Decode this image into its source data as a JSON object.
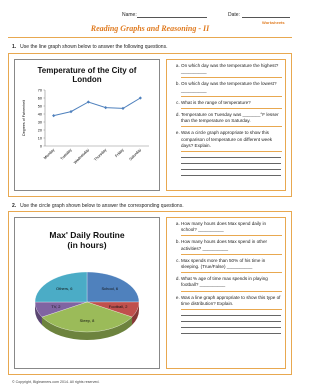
{
  "header": {
    "name_label": "Name:",
    "date_label": "Date:",
    "title": "Reading Graphs and Reasoning - II",
    "logo": "Worksheets"
  },
  "sections": [
    {
      "number": "1.",
      "instruction": "Use the line graph shown below to answer the following questions.",
      "chart": {
        "type": "line",
        "title": "Temperature of the City of London",
        "y_label": "Degrees of Fahrenheit",
        "categories": [
          "Monday",
          "Tuesday",
          "Wednesday",
          "Thursday",
          "Friday",
          "Saturday"
        ],
        "values": [
          38,
          43,
          55,
          48,
          47,
          60
        ],
        "color": "#4f81bd",
        "ylim": [
          0,
          70
        ],
        "yticks": [
          0,
          10,
          20,
          30,
          40,
          50,
          60,
          70
        ]
      },
      "questions": [
        "On which day was the temperature the highest? __________",
        "On which day was the temperature the lowest? __________",
        "What is the range of temperature?",
        "Temperature on Tuesday was _______°F lesser than the temperature on Saturday.",
        "Was a circle graph appropriate to show this comparison of temperature on different week days? Explain."
      ]
    },
    {
      "number": "2.",
      "instruction": "Use the circle graph shown below to answer the corresponding questions.",
      "chart": {
        "type": "pie",
        "title": "Max' Daily Routine (in hours)",
        "categories": [
          "School",
          "Football",
          "Sleep",
          "TV",
          "Others"
        ],
        "values": [
          6,
          2,
          8,
          2,
          6
        ],
        "value_labels": [
          "School, 6",
          "Football, 2",
          "Sleep, 8",
          "TV, 2",
          "Others, 6"
        ],
        "colors": [
          "#4f81bd",
          "#c0504d",
          "#9bbb59",
          "#8064a2",
          "#4bacc6"
        ]
      },
      "questions": [
        "How many hours does Max spend daily in school? __________",
        "How many hours does Max spend in other activities? __________",
        "Max spends more than 50% of his time in sleeping. (True/False) __________",
        "What % age of time max spends in playing football? __________",
        "Was a line graph appropriate to show this type of time distribution? Explain."
      ]
    }
  ],
  "footer": "© Copyright, Biglearners.com 2014. All rights reserved."
}
